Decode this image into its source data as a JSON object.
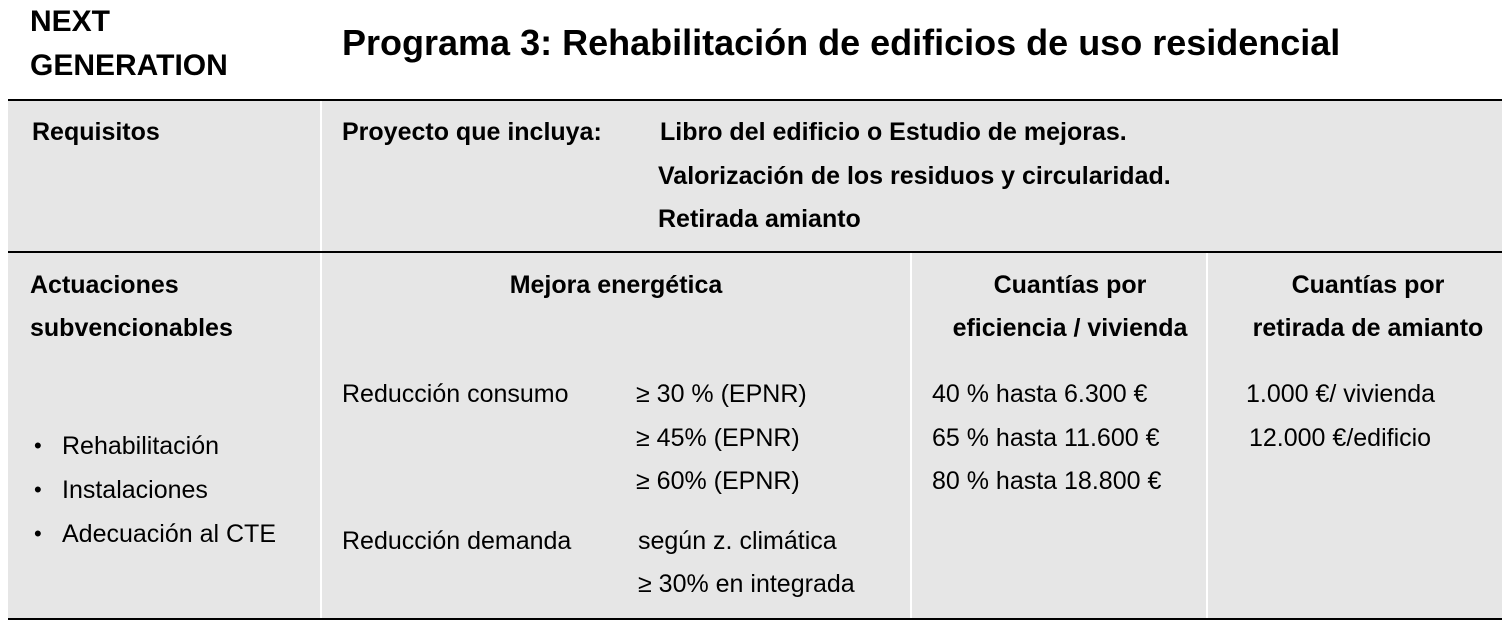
{
  "header": {
    "brand_line1": "NEXT",
    "brand_line2": "GENERATION",
    "title": "Programa 3: Rehabilitación de edificios de uso residencial"
  },
  "requisitos": {
    "label": "Requisitos",
    "lead": "Proyecto que incluya:",
    "items": [
      "Libro del edificio o Estudio de mejoras.",
      "Valorización de los residuos y circularidad.",
      "Retirada amianto"
    ]
  },
  "columns": {
    "actuaciones_line1": "Actuaciones",
    "actuaciones_line2": "subvencionables",
    "mejora": "Mejora energética",
    "cuantias_eficiencia_line1": "Cuantías por",
    "cuantias_eficiencia_line2": "eficiencia / vivienda",
    "cuantias_amianto_line1": "Cuantías por",
    "cuantias_amianto_line2": "retirada de amianto"
  },
  "body": {
    "actuaciones": [
      "Rehabilitación",
      "Instalaciones",
      "Adecuación al CTE"
    ],
    "consumo_label": "Reducción consumo",
    "consumo_values": [
      "≥ 30 % (EPNR)",
      "≥ 45% (EPNR)",
      "≥ 60% (EPNR)"
    ],
    "demanda_label": "Reducción demanda",
    "demanda_values": [
      "según z. climática",
      "≥ 30% en integrada"
    ],
    "eficiencia": [
      "40 % hasta 6.300 €",
      "65 % hasta 11.600 €",
      "80 % hasta 18.800 €"
    ],
    "amianto": [
      "1.000 €/ vivienda",
      "12.000 €/edificio"
    ]
  }
}
